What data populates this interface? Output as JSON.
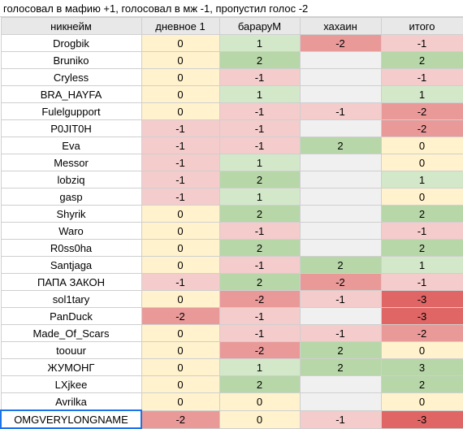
{
  "title": "голосовал в мафию +1, голосовал в мж -1, пропустил голос -2",
  "headers": [
    "никнейм",
    "дневное 1",
    "бараруМ",
    "хахаин",
    "итого"
  ],
  "colors": {
    "pos2": "#b7d7a8",
    "pos1": "#d3e8c9",
    "zero": "#fff2cc",
    "neg1": "#f4cccc",
    "neg2": "#ea9999",
    "neg3": "#e06666",
    "empty": "#f0f0f0",
    "header": "#e8e8e8"
  },
  "rows": [
    {
      "name": "Drogbik",
      "cells": [
        "0",
        "1",
        "-2",
        "-1"
      ]
    },
    {
      "name": "Bruniko",
      "cells": [
        "0",
        "2",
        "",
        "2"
      ]
    },
    {
      "name": "Cryless",
      "cells": [
        "0",
        "-1",
        "",
        "-1"
      ]
    },
    {
      "name": "BRA_HAYFA",
      "cells": [
        "0",
        "1",
        "",
        "1"
      ]
    },
    {
      "name": "Fulelgupport",
      "cells": [
        "0",
        "-1",
        "-1",
        "-2"
      ]
    },
    {
      "name": "P0JIT0H",
      "cells": [
        "-1",
        "-1",
        "",
        "-2"
      ]
    },
    {
      "name": "Eva",
      "cells": [
        "-1",
        "-1",
        "2",
        "0"
      ]
    },
    {
      "name": "Messor",
      "cells": [
        "-1",
        "1",
        "",
        "0"
      ]
    },
    {
      "name": "lobziq",
      "cells": [
        "-1",
        "2",
        "",
        "1"
      ]
    },
    {
      "name": "gasp",
      "cells": [
        "-1",
        "1",
        "",
        "0"
      ]
    },
    {
      "name": "Shyrik",
      "cells": [
        "0",
        "2",
        "",
        "2"
      ]
    },
    {
      "name": "Waro",
      "cells": [
        "0",
        "-1",
        "",
        "-1"
      ]
    },
    {
      "name": "R0ss0ha",
      "cells": [
        "0",
        "2",
        "",
        "2"
      ]
    },
    {
      "name": "Santjaga",
      "cells": [
        "0",
        "-1",
        "2",
        "1"
      ]
    },
    {
      "name": "ПАПА ЗАКОН",
      "cells": [
        "-1",
        "2",
        "-2",
        "-1"
      ]
    },
    {
      "name": "sol1tary",
      "cells": [
        "0",
        "-2",
        "-1",
        "-3"
      ]
    },
    {
      "name": "PanDuck",
      "cells": [
        "-2",
        "-1",
        "",
        "-3"
      ]
    },
    {
      "name": "Made_Of_Scars",
      "cells": [
        "0",
        "-1",
        "-1",
        "-2"
      ]
    },
    {
      "name": "toouur",
      "cells": [
        "0",
        "-2",
        "2",
        "0"
      ]
    },
    {
      "name": "ЖУМОНГ",
      "cells": [
        "0",
        "1",
        "2",
        "3"
      ]
    },
    {
      "name": "LXjkee",
      "cells": [
        "0",
        "2",
        "",
        "2"
      ]
    },
    {
      "name": "Avrilka",
      "cells": [
        "0",
        "0",
        "",
        "0"
      ]
    },
    {
      "name": "OMGVERYLONGNAME",
      "cells": [
        "-2",
        "0",
        "-1",
        "-3"
      ]
    }
  ]
}
